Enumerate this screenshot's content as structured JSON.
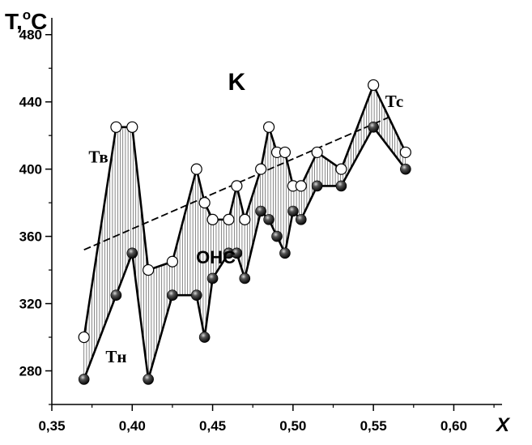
{
  "chart_data": {
    "type": "line",
    "ylabel": "T,",
    "ylabel_unit": "o",
    "ylabel_tail": "C",
    "xlabel": "X",
    "xlim": [
      0.35,
      0.63
    ],
    "ylim": [
      260,
      490
    ],
    "x_ticks": [
      0.35,
      0.4,
      0.45,
      0.5,
      0.55,
      0.6
    ],
    "x_tick_labels": [
      "0,35",
      "0,40",
      "0,45",
      "0,50",
      "0,55",
      "0,60"
    ],
    "y_ticks": [
      280,
      320,
      360,
      400,
      440,
      480
    ],
    "y_tick_labels": [
      "280",
      "320",
      "360",
      "400",
      "440",
      "480"
    ],
    "series": [
      {
        "name": "Тв",
        "marker": "open-circle",
        "x": [
          0.37,
          0.39,
          0.4,
          0.41,
          0.425,
          0.44,
          0.445,
          0.45,
          0.46,
          0.465,
          0.47,
          0.48,
          0.485,
          0.49,
          0.495,
          0.5,
          0.505,
          0.515,
          0.53,
          0.55,
          0.57
        ],
        "y": [
          300,
          425,
          425,
          340,
          345,
          400,
          380,
          370,
          370,
          390,
          370,
          400,
          425,
          410,
          410,
          390,
          390,
          410,
          400,
          450,
          410
        ]
      },
      {
        "name": "Тн",
        "marker": "filled-ball",
        "x": [
          0.37,
          0.39,
          0.4,
          0.41,
          0.425,
          0.44,
          0.445,
          0.45,
          0.46,
          0.465,
          0.47,
          0.48,
          0.485,
          0.49,
          0.495,
          0.5,
          0.505,
          0.515,
          0.53,
          0.55,
          0.57
        ],
        "y": [
          275,
          325,
          350,
          275,
          325,
          325,
          300,
          335,
          350,
          350,
          335,
          375,
          370,
          360,
          350,
          375,
          370,
          390,
          390,
          425,
          400
        ]
      }
    ],
    "trend_line": {
      "name": "Тс",
      "x": [
        0.37,
        0.56
      ],
      "y": [
        352,
        431
      ],
      "style": "dashed"
    },
    "annotations": [
      {
        "text": "K",
        "x": 0.465,
        "y": 447
      },
      {
        "text": "ОНС",
        "x": 0.452,
        "y": 344
      },
      {
        "text": "Тв",
        "x": 0.379,
        "y": 404
      },
      {
        "text": "Тн",
        "x": 0.39,
        "y": 285
      },
      {
        "text": "Тс",
        "x": 0.563,
        "y": 437
      }
    ]
  }
}
